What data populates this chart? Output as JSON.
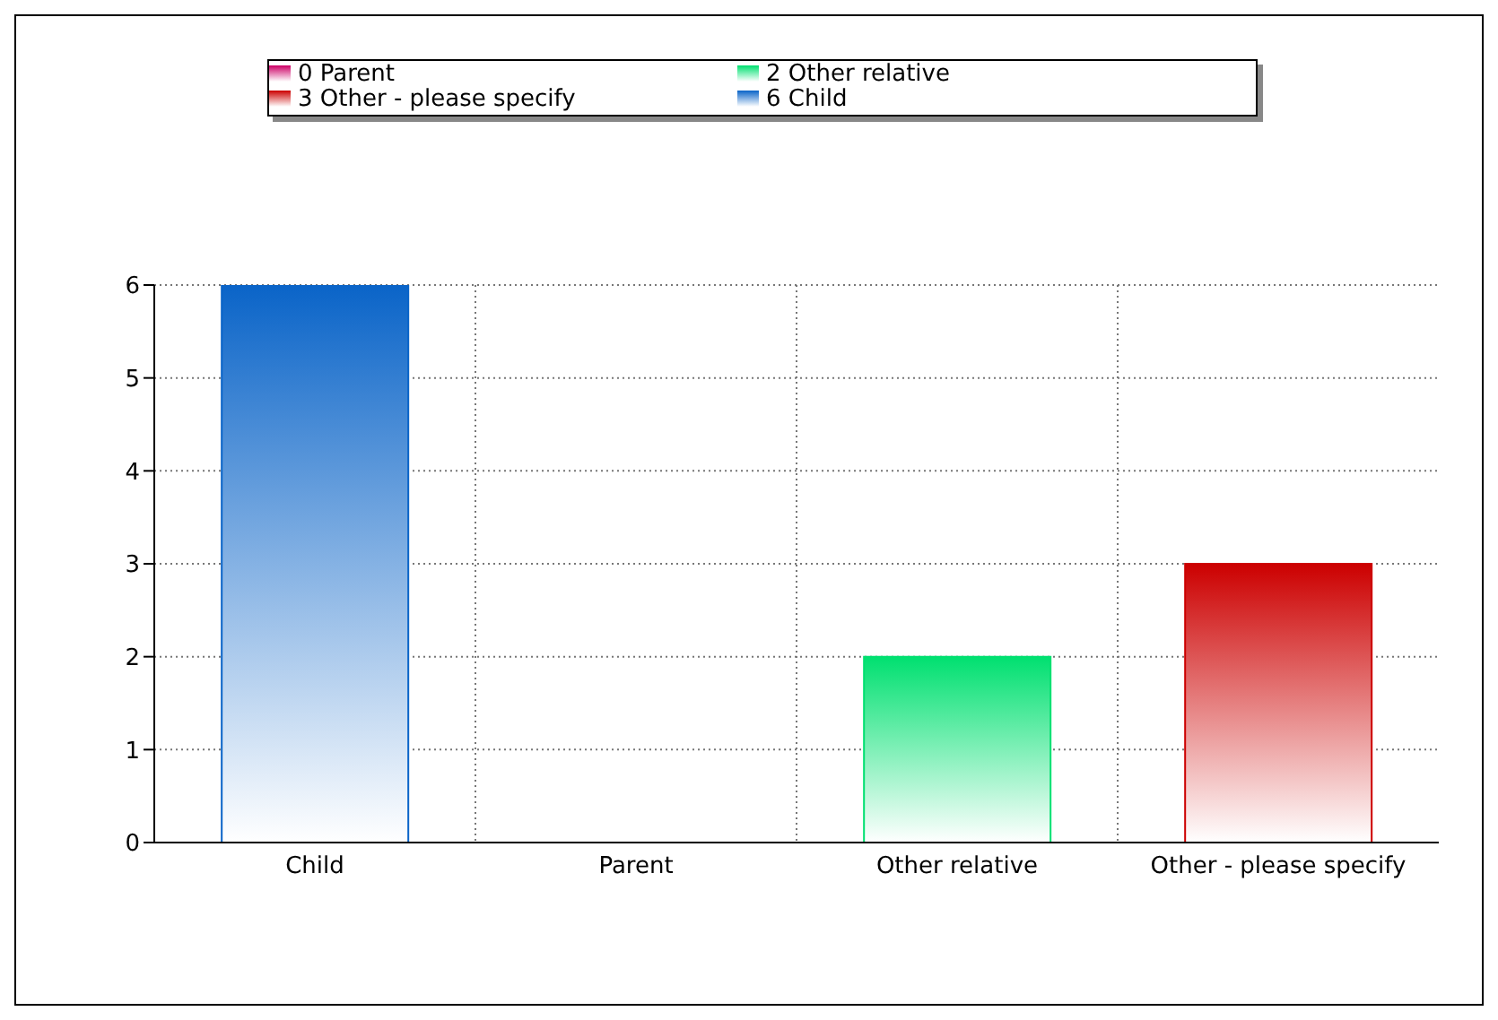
{
  "chart_data": {
    "type": "bar",
    "stacked": true,
    "categories": [
      "Child",
      "Parent",
      "Other relative",
      "Other - please specify"
    ],
    "series": [
      {
        "name": "6 Child",
        "color": "#0a64c8",
        "values": [
          6,
          null,
          null,
          null
        ]
      },
      {
        "name": "0 Parent",
        "color": "#cc0066",
        "values": [
          null,
          0,
          null,
          null
        ]
      },
      {
        "name": "2 Other relative",
        "color": "#00e070",
        "values": [
          null,
          null,
          2,
          null
        ]
      },
      {
        "name": "3 Other - please specify",
        "color": "#cc0000",
        "values": [
          null,
          null,
          null,
          3
        ]
      }
    ],
    "ylim": [
      0,
      6
    ],
    "yticks": [
      0,
      1,
      2,
      3,
      4,
      5,
      6
    ],
    "grid": true,
    "legend": "top"
  }
}
